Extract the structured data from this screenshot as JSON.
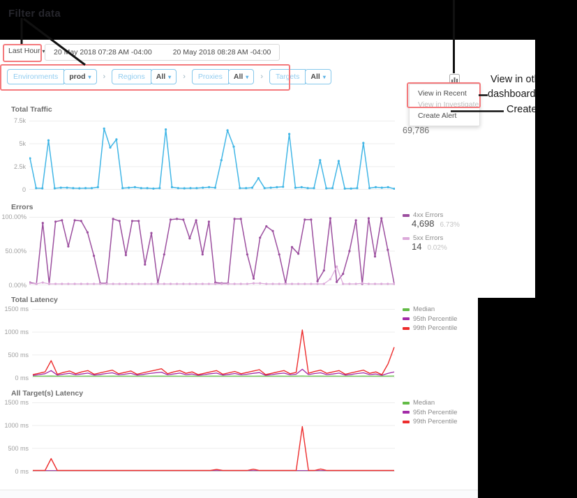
{
  "annotations": {
    "filter_data": "Filter data",
    "view_line1": "View in oth",
    "view_line2": "dashboard",
    "create_alert": "Create a"
  },
  "toolbar": {
    "time_range": "Last Hour",
    "caret": "▾",
    "date_start": "20 May 2018 07:28 AM -04:00",
    "date_end": "20 May 2018 08:28 AM -04:00"
  },
  "filters": {
    "separator": "›",
    "items": [
      {
        "label": "Environments",
        "value": "prod"
      },
      {
        "label": "Regions",
        "value": "All"
      },
      {
        "label": "Proxies",
        "value": "All"
      },
      {
        "label": "Targets",
        "value": "All"
      }
    ]
  },
  "menu": {
    "items": [
      {
        "label": "View in Recent"
      },
      {
        "label": "View in Investigate"
      },
      {
        "label": "Create Alert"
      }
    ]
  },
  "colors": {
    "callout_red": "#f4797c",
    "traffic_blue": "#41b6e6",
    "errors_4xx": "#9c4f9f",
    "errors_5xx": "#dcaada",
    "median_green": "#62bb46",
    "p95_purple": "#a32ba8",
    "p99_red": "#ed2c2c"
  },
  "chart_data": [
    {
      "type": "line",
      "title": "Total Traffic",
      "total": "69,786",
      "ymax": 7500,
      "yticks": [
        "7.5k",
        "5k",
        "2.5k",
        "0"
      ],
      "series": [
        {
          "name": "Traffic",
          "color": "#41b6e6",
          "markers": true,
          "width": 1.5,
          "values": [
            3400,
            100,
            80,
            5400,
            80,
            150,
            150,
            100,
            80,
            100,
            100,
            200,
            6700,
            4600,
            5500,
            100,
            150,
            200,
            100,
            100,
            50,
            100,
            6600,
            200,
            100,
            80,
            100,
            100,
            150,
            200,
            150,
            3200,
            6500,
            4700,
            100,
            100,
            150,
            1200,
            100,
            150,
            200,
            250,
            6100,
            150,
            200,
            100,
            100,
            3200,
            80,
            100,
            3100,
            50,
            50,
            100,
            5100,
            100,
            200,
            150,
            200,
            30
          ]
        }
      ]
    },
    {
      "type": "line",
      "title": "Errors",
      "ymax": 100,
      "yticks": [
        "100.00%",
        "50.00%",
        "0.00%"
      ],
      "series": [
        {
          "name": "4xx Errors",
          "color": "#9c4f9f",
          "markers": true,
          "width": 1.5,
          "count": "4,698",
          "pct": "6.73%",
          "values": [
            3,
            1,
            92,
            1,
            94,
            96,
            57,
            96,
            95,
            78,
            43,
            2,
            2,
            98,
            95,
            44,
            95,
            95,
            30,
            77,
            2,
            45,
            97,
            98,
            97,
            69,
            96,
            45,
            94,
            3,
            2,
            2,
            98,
            98,
            45,
            9,
            70,
            87,
            80,
            45,
            2,
            56,
            46,
            97,
            97,
            5,
            21,
            99,
            4,
            16,
            50,
            96,
            1,
            99,
            42,
            99,
            52,
            1
          ]
        },
        {
          "name": "5xx Errors",
          "color": "#dcaada",
          "markers": true,
          "width": 1.2,
          "count": "14",
          "pct": "0.02%",
          "values": [
            2,
            1,
            3,
            1,
            1,
            1,
            1,
            1,
            1,
            1,
            1,
            1,
            1,
            1,
            1,
            1,
            1,
            1,
            1,
            1,
            1,
            1,
            1,
            1,
            1,
            1,
            1,
            1,
            1,
            1,
            1,
            1,
            1,
            1,
            1,
            2,
            2,
            1,
            1,
            1,
            1,
            1,
            1,
            1,
            1,
            1,
            1,
            8,
            27,
            1,
            1,
            1,
            2,
            1,
            1,
            1,
            1,
            1
          ]
        }
      ]
    },
    {
      "type": "line",
      "title": "Total Latency",
      "ymax": 1500,
      "yticks": [
        "1500 ms",
        "1000 ms",
        "500 ms",
        "0 ms"
      ],
      "series": [
        {
          "name": "Median",
          "color": "#62bb46",
          "width": 1.3,
          "values": [
            25,
            25,
            26,
            28,
            24,
            25,
            26,
            25,
            25,
            27,
            24,
            26,
            25,
            27,
            25,
            26,
            25,
            24,
            26,
            25,
            27,
            26,
            25,
            26,
            25,
            25,
            26,
            24,
            25,
            26,
            27,
            25,
            25,
            26,
            25,
            26,
            25,
            27,
            24,
            25,
            26,
            25,
            25,
            26,
            30,
            25,
            26,
            27,
            25,
            26,
            25,
            24,
            26,
            25,
            26,
            25,
            26,
            24,
            26,
            28
          ]
        },
        {
          "name": "95th Percentile",
          "color": "#a32ba8",
          "width": 1.3,
          "values": [
            40,
            60,
            80,
            150,
            50,
            70,
            90,
            55,
            75,
            95,
            50,
            65,
            85,
            100,
            55,
            70,
            90,
            50,
            65,
            85,
            100,
            115,
            55,
            75,
            95,
            60,
            75,
            45,
            60,
            80,
            95,
            50,
            65,
            85,
            55,
            70,
            90,
            105,
            45,
            60,
            80,
            95,
            55,
            70,
            180,
            60,
            85,
            100,
            60,
            75,
            95,
            50,
            65,
            85,
            100,
            60,
            75,
            45,
            90,
            120
          ]
        },
        {
          "name": "99th Percentile",
          "color": "#ed2c2c",
          "width": 1.4,
          "values": [
            60,
            90,
            120,
            370,
            70,
            110,
            140,
            80,
            120,
            150,
            70,
            100,
            130,
            160,
            80,
            110,
            140,
            70,
            100,
            130,
            160,
            190,
            80,
            120,
            150,
            90,
            120,
            60,
            90,
            120,
            150,
            70,
            100,
            130,
            80,
            110,
            140,
            170,
            60,
            90,
            120,
            150,
            80,
            110,
            1050,
            90,
            130,
            160,
            90,
            120,
            150,
            70,
            100,
            130,
            160,
            90,
            120,
            60,
            300,
            670
          ]
        }
      ]
    },
    {
      "type": "line",
      "title": "All Target(s) Latency",
      "ymax": 1500,
      "yticks": [
        "1500 ms",
        "1000 ms",
        "500 ms",
        "0 ms"
      ],
      "series": [
        {
          "name": "Median",
          "color": "#62bb46",
          "width": 1.2,
          "values": [
            3,
            3,
            3,
            3,
            3,
            3,
            3,
            3,
            3,
            3,
            3,
            3,
            3,
            3,
            3,
            3,
            3,
            3,
            3,
            3,
            3,
            3,
            3,
            3,
            3,
            3,
            3,
            3,
            3,
            3,
            3,
            3,
            3,
            3,
            3,
            3,
            3,
            3,
            3,
            3,
            3,
            3,
            3,
            3,
            3,
            3,
            3,
            3,
            3,
            3,
            3,
            3,
            3,
            3,
            3,
            3,
            3,
            3,
            3,
            3
          ]
        },
        {
          "name": "95th Percentile",
          "color": "#a32ba8",
          "width": 1.2,
          "values": [
            5,
            5,
            5,
            5,
            5,
            5,
            5,
            5,
            5,
            5,
            5,
            5,
            5,
            5,
            5,
            5,
            5,
            5,
            5,
            5,
            5,
            5,
            5,
            5,
            5,
            5,
            5,
            5,
            5,
            5,
            5,
            5,
            5,
            5,
            5,
            5,
            5,
            5,
            5,
            5,
            5,
            5,
            5,
            5,
            5,
            5,
            5,
            5,
            5,
            5,
            5,
            5,
            5,
            5,
            5,
            5,
            5,
            5,
            5,
            5
          ]
        },
        {
          "name": "99th Percentile",
          "color": "#ed2c2c",
          "width": 1.4,
          "values": [
            8,
            8,
            8,
            270,
            8,
            8,
            8,
            8,
            8,
            8,
            8,
            8,
            8,
            8,
            8,
            8,
            8,
            8,
            8,
            8,
            8,
            8,
            8,
            8,
            8,
            8,
            8,
            8,
            8,
            8,
            30,
            8,
            8,
            8,
            8,
            8,
            35,
            8,
            8,
            8,
            8,
            8,
            8,
            8,
            980,
            8,
            8,
            40,
            8,
            8,
            8,
            8,
            8,
            8,
            8,
            8,
            8,
            8,
            8,
            8
          ]
        }
      ]
    }
  ]
}
